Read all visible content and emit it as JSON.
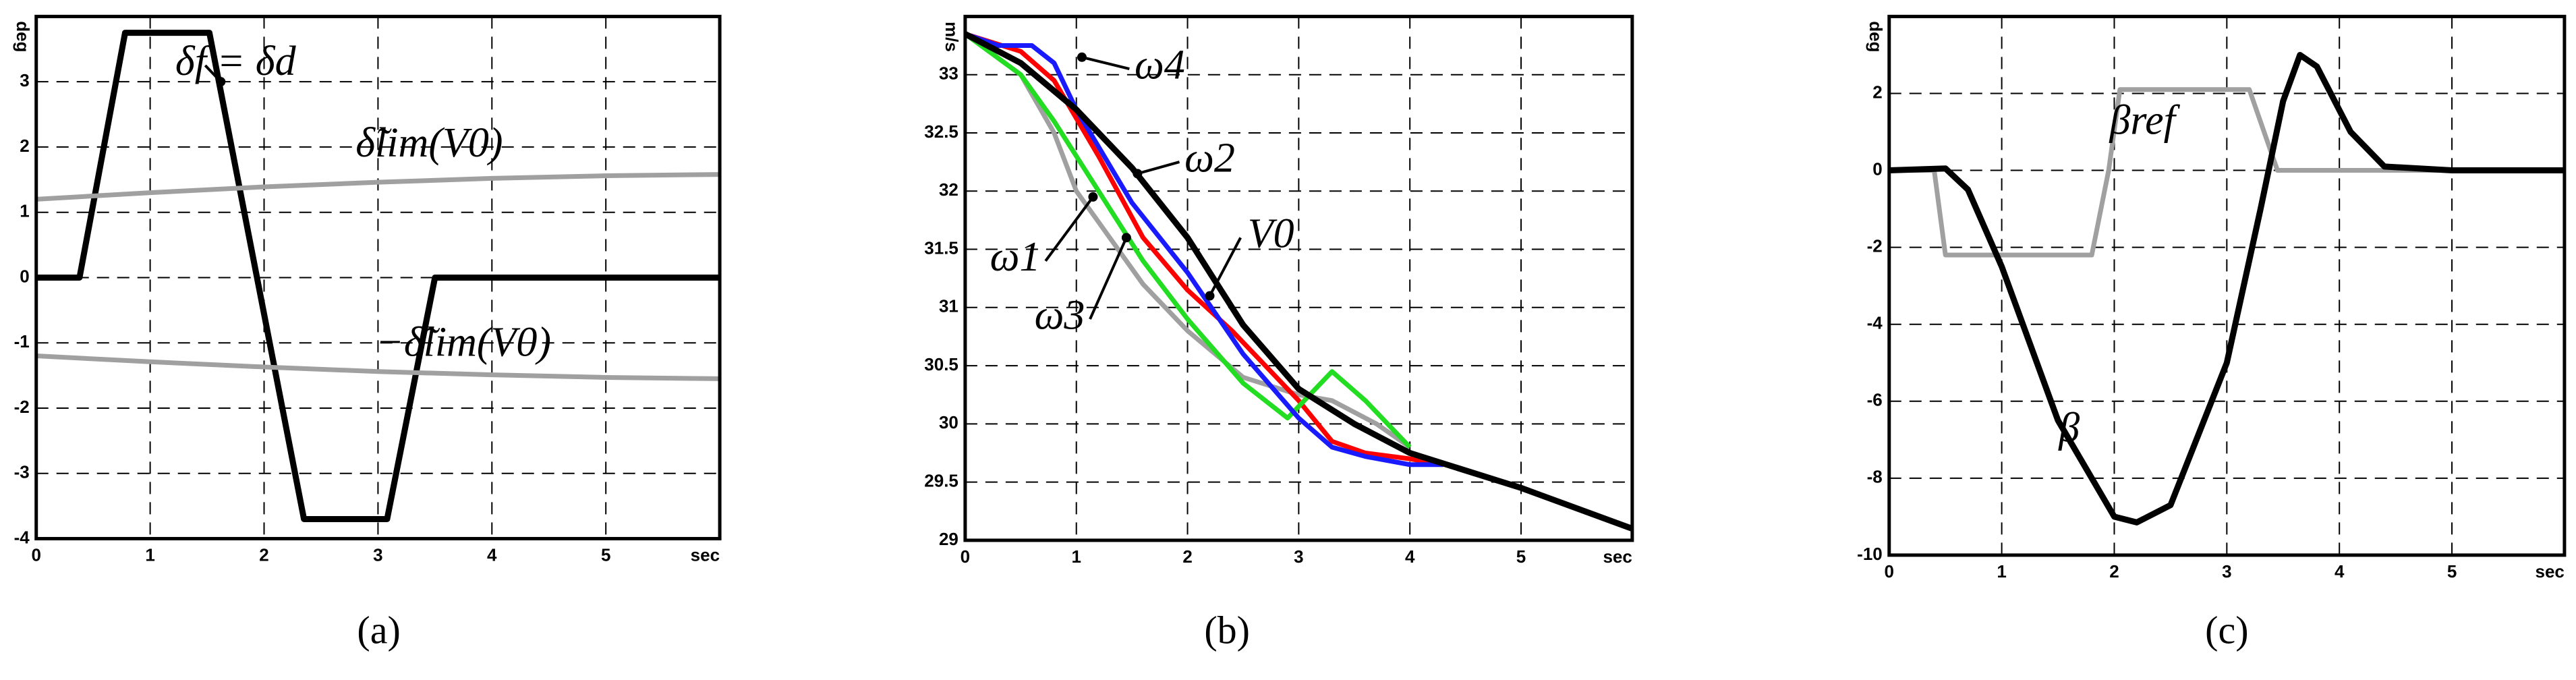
{
  "chart_data": [
    {
      "type": "line",
      "caption": "(a)",
      "xlabel": "sec",
      "ylabel": "deg",
      "xlim": [
        0,
        6
      ],
      "xticks": [
        0,
        1,
        2,
        3,
        4,
        5
      ],
      "ylim": [
        -4,
        4
      ],
      "yticks": [
        -4,
        -3,
        -2,
        -1,
        0,
        1,
        2,
        3
      ],
      "grid": true,
      "series": [
        {
          "name": "δf = δd",
          "color": "#000000",
          "x": [
            0,
            0.38,
            0.78,
            1.52,
            2.35,
            3.08,
            3.5,
            6
          ],
          "values": [
            0,
            0,
            3.75,
            3.75,
            -3.7,
            -3.7,
            0,
            0
          ]
        },
        {
          "name": "δ̃lim(V0)",
          "color": "#a0a0a0",
          "x": [
            0,
            1,
            2,
            3,
            4,
            5,
            6
          ],
          "values": [
            1.2,
            1.3,
            1.39,
            1.46,
            1.52,
            1.56,
            1.58
          ]
        },
        {
          "name": "−δ̃lim(V0)",
          "color": "#a0a0a0",
          "x": [
            0,
            1,
            2,
            3,
            4,
            5,
            6
          ],
          "values": [
            -1.2,
            -1.29,
            -1.37,
            -1.44,
            -1.49,
            -1.53,
            -1.55
          ]
        }
      ]
    },
    {
      "type": "line",
      "caption": "(b)",
      "xlabel": "sec",
      "ylabel": "m/s",
      "xlim": [
        0,
        6
      ],
      "xticks": [
        0,
        1,
        2,
        3,
        4,
        5
      ],
      "ylim": [
        29,
        33.5
      ],
      "yticks": [
        29,
        29.5,
        30,
        30.5,
        31,
        31.5,
        32,
        32.5,
        33
      ],
      "grid": true,
      "series": [
        {
          "name": "ω1",
          "color": "#a0a0a0",
          "x": [
            0,
            0.5,
            0.8,
            1,
            1.3,
            1.6,
            2,
            2.5,
            3,
            3.3,
            3.7,
            4
          ],
          "values": [
            33.35,
            33.0,
            32.5,
            32.0,
            31.6,
            31.2,
            30.8,
            30.4,
            30.25,
            30.2,
            30.0,
            29.8
          ]
        },
        {
          "name": "ω2",
          "color": "#ff0000",
          "x": [
            0,
            0.5,
            0.8,
            1.2,
            1.6,
            2,
            2.4,
            3,
            3.3,
            3.6,
            4,
            4.3
          ],
          "values": [
            33.35,
            33.2,
            32.95,
            32.3,
            31.6,
            31.15,
            30.8,
            30.2,
            29.85,
            29.75,
            29.7,
            29.65
          ]
        },
        {
          "name": "ω3",
          "color": "#22dd22",
          "x": [
            0,
            0.5,
            0.8,
            1.2,
            1.6,
            2,
            2.5,
            2.9,
            3.1,
            3.3,
            3.6,
            4
          ],
          "values": [
            33.35,
            33.0,
            32.6,
            32.0,
            31.4,
            30.9,
            30.35,
            30.05,
            30.25,
            30.45,
            30.2,
            29.8
          ]
        },
        {
          "name": "ω4",
          "color": "#1a1aff",
          "x": [
            0,
            0.3,
            0.6,
            0.8,
            1,
            1.5,
            2,
            2.5,
            3,
            3.3,
            3.6,
            4,
            4.3
          ],
          "values": [
            33.35,
            33.25,
            33.25,
            33.1,
            32.7,
            31.9,
            31.3,
            30.6,
            30.05,
            29.8,
            29.72,
            29.65,
            29.65
          ]
        },
        {
          "name": "V0",
          "color": "#000000",
          "x": [
            0,
            0.5,
            1,
            1.5,
            2,
            2.5,
            3,
            3.5,
            4,
            5,
            6
          ],
          "values": [
            33.35,
            33.1,
            32.7,
            32.2,
            31.6,
            30.85,
            30.3,
            30.0,
            29.75,
            29.45,
            29.1
          ]
        }
      ]
    },
    {
      "type": "line",
      "caption": "(c)",
      "xlabel": "sec",
      "ylabel": "deg",
      "xlim": [
        0,
        6
      ],
      "xticks": [
        0,
        1,
        2,
        3,
        4,
        5
      ],
      "ylim": [
        -10,
        4
      ],
      "yticks": [
        -10,
        -8,
        -6,
        -4,
        -2,
        0,
        2
      ],
      "grid": true,
      "series": [
        {
          "name": "βref",
          "color": "#a0a0a0",
          "x": [
            0,
            0.4,
            0.5,
            1.8,
            1.95,
            2.05,
            3.2,
            3.45,
            6
          ],
          "values": [
            0,
            0,
            -2.2,
            -2.2,
            0,
            2.1,
            2.1,
            0,
            0
          ]
        },
        {
          "name": "β",
          "color": "#000000",
          "x": [
            0,
            0.5,
            0.7,
            1,
            1.5,
            2,
            2.2,
            2.5,
            3,
            3.3,
            3.5,
            3.65,
            3.8,
            4.1,
            4.4,
            5,
            6
          ],
          "values": [
            0,
            0.05,
            -0.5,
            -2.5,
            -6.5,
            -9,
            -9.15,
            -8.7,
            -5,
            -1,
            1.8,
            3,
            2.7,
            1,
            0.1,
            0,
            0
          ]
        }
      ]
    }
  ]
}
